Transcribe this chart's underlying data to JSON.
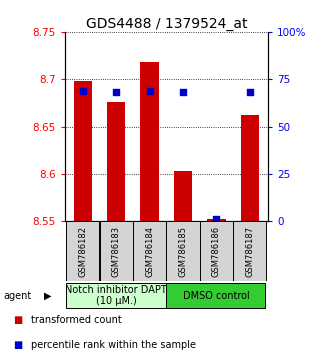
{
  "title": "GDS4488 / 1379524_at",
  "samples": [
    "GSM786182",
    "GSM786183",
    "GSM786184",
    "GSM786185",
    "GSM786186",
    "GSM786187"
  ],
  "bar_values": [
    8.698,
    8.676,
    8.718,
    8.603,
    8.552,
    8.662
  ],
  "percentile_values": [
    69,
    68,
    69,
    68,
    1,
    68
  ],
  "ylim_left": [
    8.55,
    8.75
  ],
  "ylim_right": [
    0,
    100
  ],
  "bar_color": "#cc0000",
  "dot_color": "#0000cc",
  "bar_bottom": 8.55,
  "yticks_left": [
    8.55,
    8.6,
    8.65,
    8.7,
    8.75
  ],
  "yticks_right": [
    0,
    25,
    50,
    75,
    100
  ],
  "ytick_labels_left": [
    "8.55",
    "8.6",
    "8.65",
    "8.7",
    "8.75"
  ],
  "ytick_labels_right": [
    "0",
    "25",
    "50",
    "75",
    "100%"
  ],
  "group1_label": "Notch inhibitor DAPT\n(10 μM.)",
  "group2_label": "DMSO control",
  "group1_color": "#ccffcc",
  "group2_color": "#33cc33",
  "agent_label": "agent",
  "legend1": "transformed count",
  "legend2": "percentile rank within the sample",
  "bar_width": 0.55,
  "title_fontsize": 10,
  "tick_fontsize": 7.5,
  "sample_fontsize": 6,
  "agent_fontsize": 7,
  "legend_fontsize": 7
}
